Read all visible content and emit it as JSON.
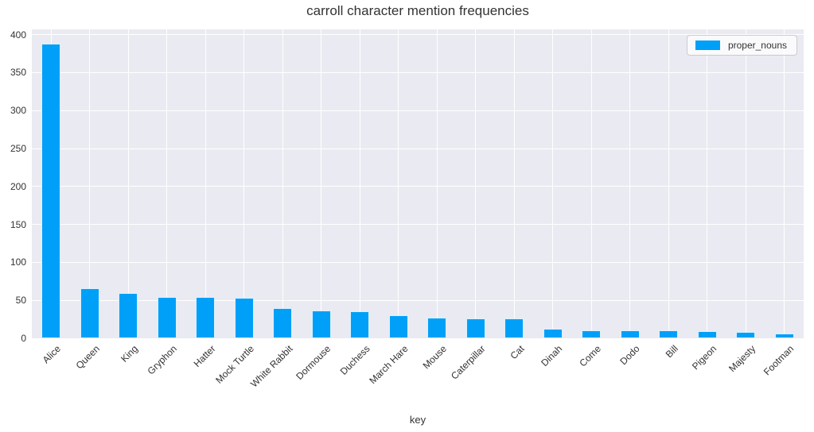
{
  "figure": {
    "title": "carroll character mention frequencies",
    "xlabel": "key",
    "legend": {
      "position": "upper right",
      "items": [
        {
          "label": "proper_nouns",
          "color": "#00a0f8"
        }
      ]
    }
  },
  "colors": {
    "bar": "#00a0f8",
    "plot_background": "#eaeaf2",
    "gridline": "#ffffff",
    "text": "#333333"
  },
  "chart_data": {
    "type": "bar",
    "title": "carroll character mention frequencies",
    "xlabel": "key",
    "ylabel": "",
    "grid": true,
    "legend_position": "upper right",
    "series_name": "proper_nouns",
    "categories": [
      "Alice",
      "Queen",
      "King",
      "Gryphon",
      "Hatter",
      "Mock Turtle",
      "White Rabbit",
      "Dormouse",
      "Duchess",
      "March Hare",
      "Mouse",
      "Caterpillar",
      "Cat",
      "Dinah",
      "Come",
      "Dodo",
      "Bill",
      "Pigeon",
      "Majesty",
      "Footman"
    ],
    "values": [
      388,
      66,
      60,
      54,
      54,
      53,
      40,
      37,
      36,
      30,
      27,
      26,
      26,
      13,
      11,
      11,
      11,
      9,
      8,
      6
    ],
    "yticks": [
      0,
      50,
      100,
      150,
      200,
      250,
      300,
      350,
      400
    ],
    "ylim": [
      0,
      407
    ]
  }
}
